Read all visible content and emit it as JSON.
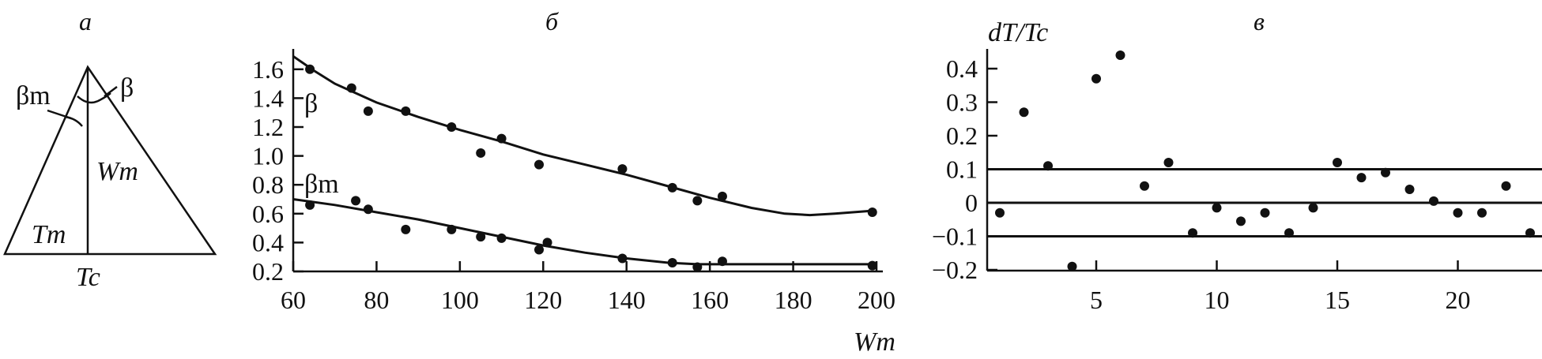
{
  "panels": {
    "a": {
      "label": "а",
      "beta_m": "βm",
      "beta": "β",
      "wm": "Wm",
      "tm": "Tm",
      "tc": "Tc"
    },
    "b": {
      "label": "б"
    },
    "c": {
      "label": "в"
    }
  },
  "chart_data": [
    {
      "type": "scatter",
      "panel": "б",
      "xlabel": "Wm",
      "ylabel": "",
      "xlim": [
        60,
        200
      ],
      "ylim": [
        0.2,
        1.7
      ],
      "xticks": [
        60,
        80,
        100,
        120,
        140,
        160,
        180,
        200
      ],
      "yticks": [
        0.2,
        0.4,
        0.6,
        0.8,
        1.0,
        1.2,
        1.4,
        1.6
      ],
      "ytick_labels": [
        "0.2",
        "0.4",
        "0.6",
        "0.8",
        "1.0",
        "1.2",
        "1.4",
        "1.6"
      ],
      "grid": false,
      "series": [
        {
          "name": "β",
          "points": [
            [
              64,
              1.6
            ],
            [
              74,
              1.47
            ],
            [
              78,
              1.31
            ],
            [
              87,
              1.31
            ],
            [
              98,
              1.2
            ],
            [
              105,
              1.02
            ],
            [
              110,
              1.12
            ],
            [
              119,
              0.94
            ],
            [
              139,
              0.91
            ],
            [
              151,
              0.78
            ],
            [
              157,
              0.69
            ],
            [
              163,
              0.72
            ],
            [
              199,
              0.61
            ]
          ],
          "fit": [
            [
              60,
              1.69
            ],
            [
              65,
              1.59
            ],
            [
              70,
              1.5
            ],
            [
              80,
              1.37
            ],
            [
              90,
              1.27
            ],
            [
              100,
              1.18
            ],
            [
              110,
              1.1
            ],
            [
              120,
              1.01
            ],
            [
              130,
              0.94
            ],
            [
              140,
              0.87
            ],
            [
              150,
              0.79
            ],
            [
              160,
              0.71
            ],
            [
              170,
              0.64
            ],
            [
              178,
              0.6
            ],
            [
              184,
              0.59
            ],
            [
              190,
              0.6
            ],
            [
              199,
              0.62
            ]
          ]
        },
        {
          "name": "βm",
          "points": [
            [
              64,
              0.66
            ],
            [
              75,
              0.69
            ],
            [
              78,
              0.63
            ],
            [
              87,
              0.49
            ],
            [
              98,
              0.49
            ],
            [
              105,
              0.44
            ],
            [
              110,
              0.43
            ],
            [
              119,
              0.35
            ],
            [
              121,
              0.4
            ],
            [
              139,
              0.29
            ],
            [
              151,
              0.26
            ],
            [
              157,
              0.23
            ],
            [
              163,
              0.27
            ],
            [
              199,
              0.24
            ]
          ],
          "fit": [
            [
              60,
              0.7
            ],
            [
              70,
              0.66
            ],
            [
              80,
              0.61
            ],
            [
              90,
              0.56
            ],
            [
              100,
              0.5
            ],
            [
              110,
              0.44
            ],
            [
              120,
              0.38
            ],
            [
              130,
              0.33
            ],
            [
              140,
              0.29
            ],
            [
              150,
              0.26
            ],
            [
              157,
              0.25
            ],
            [
              170,
              0.25
            ],
            [
              200,
              0.25
            ]
          ]
        }
      ]
    },
    {
      "type": "scatter",
      "panel": "в",
      "xlabel": "",
      "ylabel": "dT/Tc",
      "xlim": [
        0.9,
        23.5
      ],
      "ylim": [
        -0.2,
        0.45
      ],
      "xticks": [
        5,
        10,
        15,
        20
      ],
      "yticks": [
        -0.2,
        -0.1,
        0,
        0.1,
        0.2,
        0.3,
        0.4
      ],
      "ytick_labels": [
        "−0.2",
        "−0.1",
        "0",
        "0.1",
        "0.2",
        "0.3",
        "0.4"
      ],
      "reference_lines": [
        0.1,
        0,
        -0.1
      ],
      "grid": false,
      "x": [
        1,
        2,
        3,
        4,
        5,
        6,
        7,
        8,
        9,
        10,
        11,
        12,
        13,
        14,
        15,
        16,
        17,
        18,
        19,
        20,
        21,
        22,
        23
      ],
      "y": [
        -0.03,
        0.27,
        0.11,
        -0.19,
        0.37,
        0.44,
        0.05,
        0.12,
        -0.09,
        -0.015,
        -0.055,
        -0.03,
        -0.09,
        -0.015,
        0.12,
        0.075,
        0.09,
        0.04,
        0.005,
        -0.03,
        -0.03,
        0.05,
        -0.09
      ]
    }
  ]
}
